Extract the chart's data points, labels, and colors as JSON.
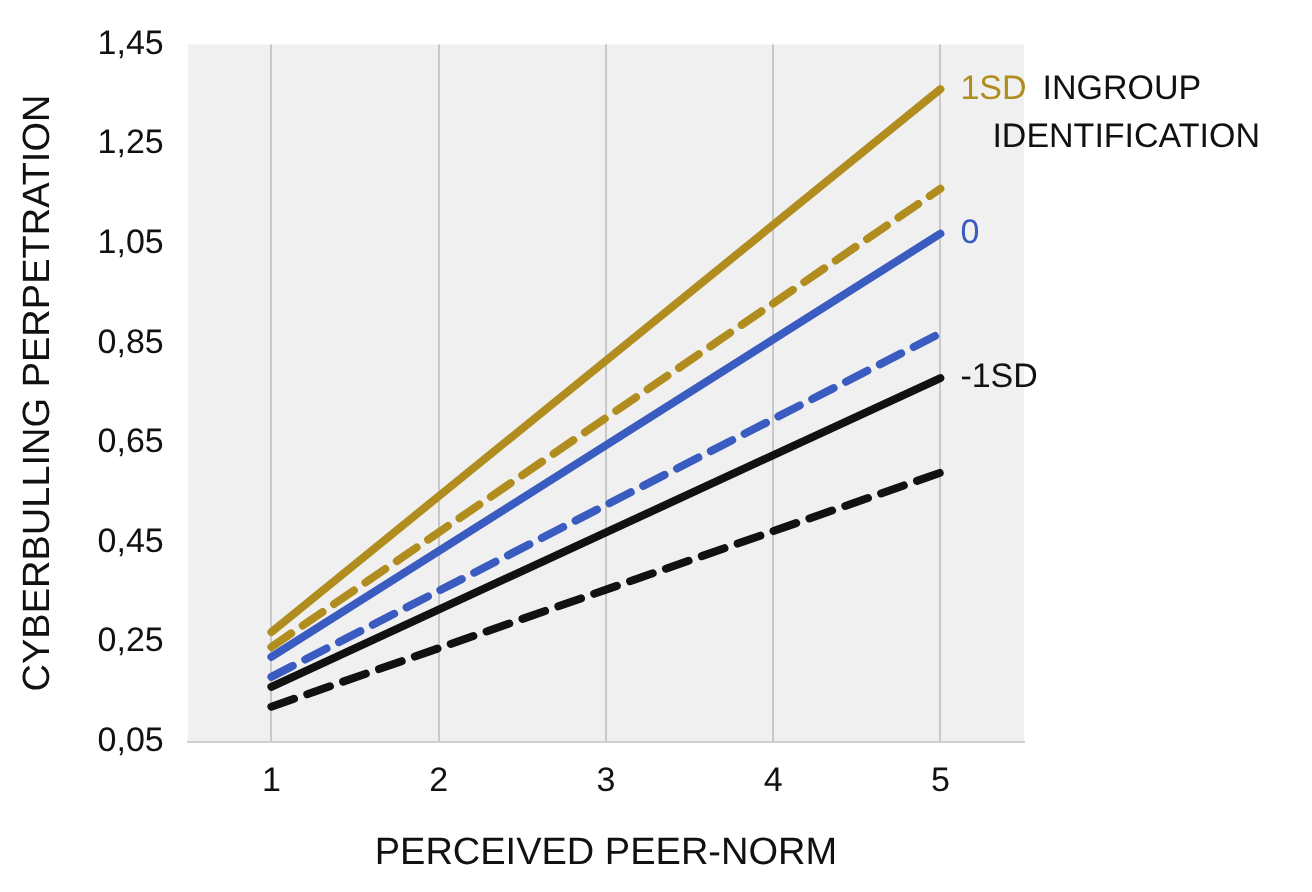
{
  "chart_data": {
    "type": "line",
    "xlabel": "PERCEIVED PEER-NORM",
    "ylabel": "CYBERBULLING PERPETRATION",
    "legend_title": "INGROUP IDENTIFICATION",
    "x": [
      1,
      5
    ],
    "xlim": [
      0.5,
      5.5
    ],
    "xticks": [
      1,
      2,
      3,
      4,
      5
    ],
    "ylim": [
      0.05,
      1.45
    ],
    "yticks": [
      {
        "value": 0.05,
        "label": "0,05"
      },
      {
        "value": 0.25,
        "label": "0,25"
      },
      {
        "value": 0.45,
        "label": "0,45"
      },
      {
        "value": 0.65,
        "label": "0,65"
      },
      {
        "value": 0.85,
        "label": "0,85"
      },
      {
        "value": 1.05,
        "label": "1,05"
      },
      {
        "value": 1.25,
        "label": "1,25"
      },
      {
        "value": 1.45,
        "label": "1,45"
      }
    ],
    "grid": "x",
    "legend": false,
    "marker": "none",
    "series": [
      {
        "name": "1SD",
        "color": "#b08d1e",
        "line_style": "solid",
        "values": [
          0.27,
          1.36
        ]
      },
      {
        "color": "#b08d1e",
        "line_style": "dashed",
        "values": [
          0.24,
          1.16
        ]
      },
      {
        "name": "0",
        "color": "#3a5bbf",
        "line_style": "solid",
        "values": [
          0.22,
          1.07
        ]
      },
      {
        "color": "#3a5bbf",
        "line_style": "dashed",
        "values": [
          0.18,
          0.87
        ]
      },
      {
        "name": "-1SD",
        "color": "#111111",
        "line_style": "solid",
        "values": [
          0.16,
          0.78
        ]
      },
      {
        "color": "#111111",
        "line_style": "dashed",
        "values": [
          0.12,
          0.59
        ]
      }
    ]
  }
}
